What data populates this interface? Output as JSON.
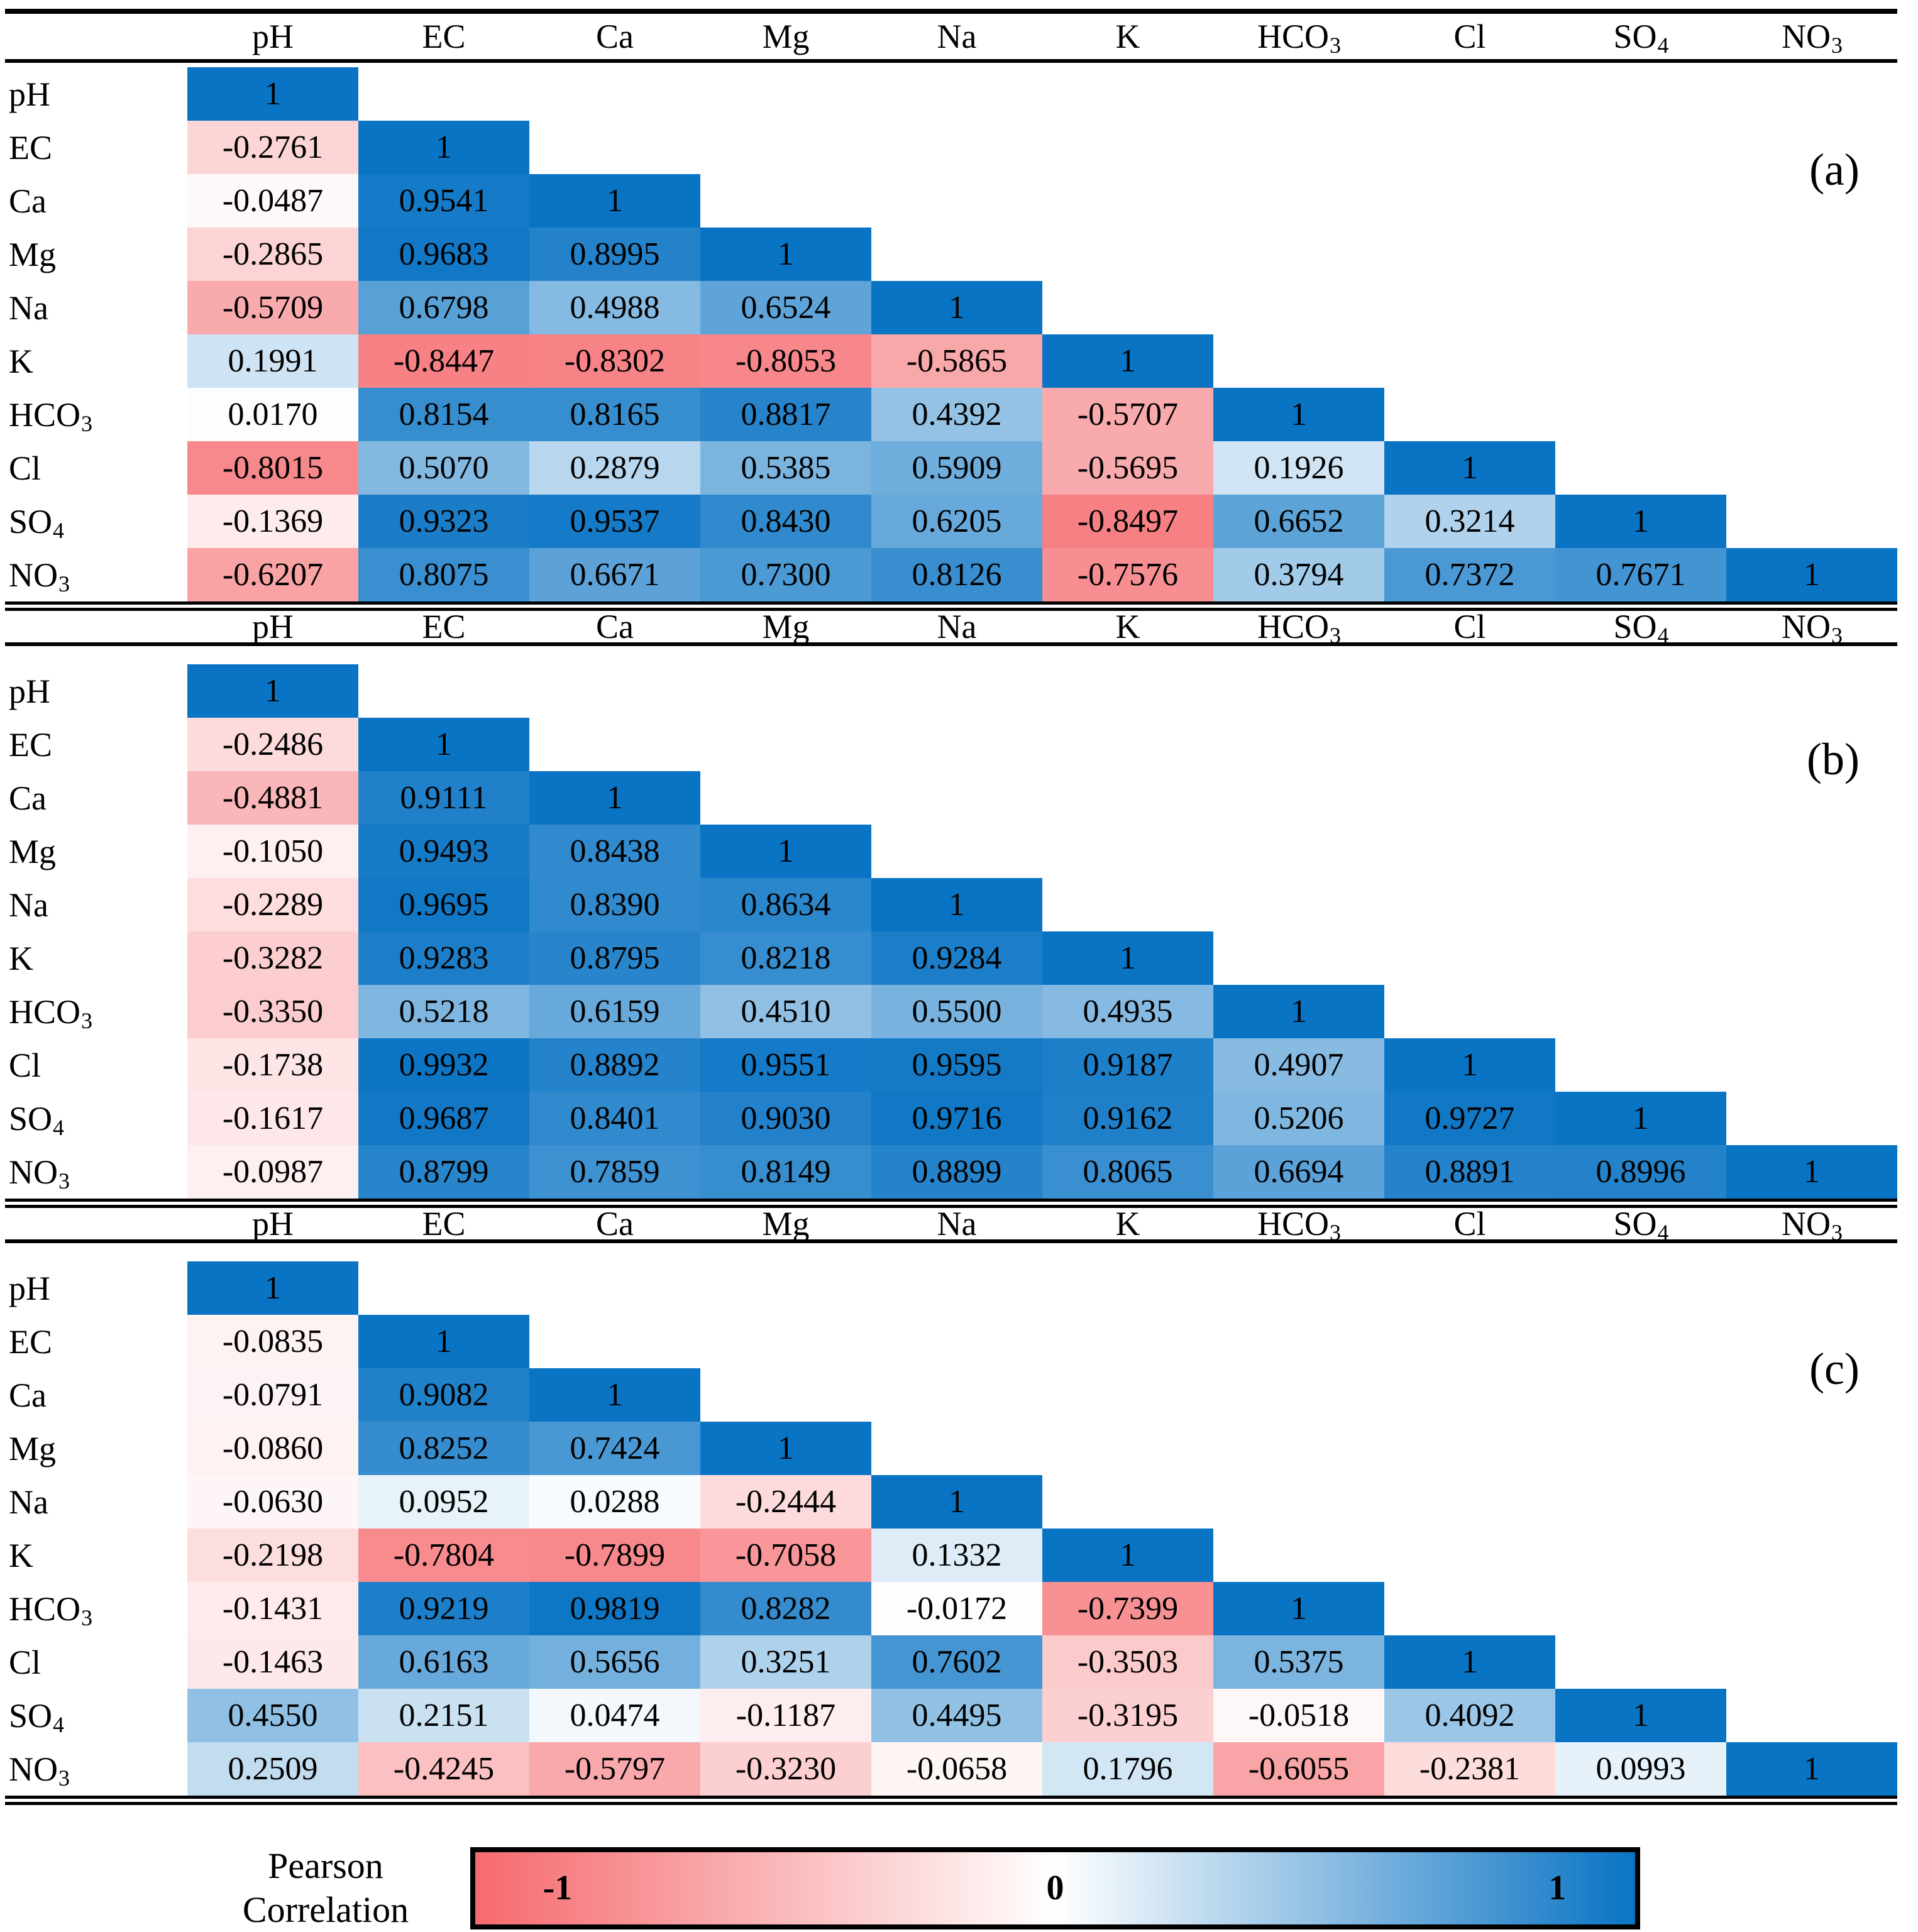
{
  "params": [
    {
      "base": "pH",
      "sub": ""
    },
    {
      "base": "EC",
      "sub": ""
    },
    {
      "base": "Ca",
      "sub": ""
    },
    {
      "base": "Mg",
      "sub": ""
    },
    {
      "base": "Na",
      "sub": ""
    },
    {
      "base": "K",
      "sub": ""
    },
    {
      "base": "HCO",
      "sub": "3"
    },
    {
      "base": "Cl",
      "sub": ""
    },
    {
      "base": "SO",
      "sub": "4"
    },
    {
      "base": "NO",
      "sub": "3"
    }
  ],
  "chart_data": [
    {
      "type": "heatmap",
      "panel_label": "(a)",
      "variables": [
        "pH",
        "EC",
        "Ca",
        "Mg",
        "Na",
        "K",
        "HCO3",
        "Cl",
        "SO4",
        "NO3"
      ],
      "matrix": [
        [
          "1"
        ],
        [
          "-0.2761",
          "1"
        ],
        [
          "-0.0487",
          "0.9541",
          "1"
        ],
        [
          "-0.2865",
          "0.9683",
          "0.8995",
          "1"
        ],
        [
          "-0.5709",
          "0.6798",
          "0.4988",
          "0.6524",
          "1"
        ],
        [
          "0.1991",
          "-0.8447",
          "-0.8302",
          "-0.8053",
          "-0.5865",
          "1"
        ],
        [
          "0.0170",
          "0.8154",
          "0.8165",
          "0.8817",
          "0.4392",
          "-0.5707",
          "1"
        ],
        [
          "-0.8015",
          "0.5070",
          "0.2879",
          "0.5385",
          "0.5909",
          "-0.5695",
          "0.1926",
          "1"
        ],
        [
          "-0.1369",
          "0.9323",
          "0.9537",
          "0.8430",
          "0.6205",
          "-0.8497",
          "0.6652",
          "0.3214",
          "1"
        ],
        [
          "-0.6207",
          "0.8075",
          "0.6671",
          "0.7300",
          "0.8126",
          "-0.7576",
          "0.3794",
          "0.7372",
          "0.7671",
          "1"
        ]
      ]
    },
    {
      "type": "heatmap",
      "panel_label": "(b)",
      "variables": [
        "pH",
        "EC",
        "Ca",
        "Mg",
        "Na",
        "K",
        "HCO3",
        "Cl",
        "SO4",
        "NO3"
      ],
      "matrix": [
        [
          "1"
        ],
        [
          "-0.2486",
          "1"
        ],
        [
          "-0.4881",
          "0.9111",
          "1"
        ],
        [
          "-0.1050",
          "0.9493",
          "0.8438",
          "1"
        ],
        [
          "-0.2289",
          "0.9695",
          "0.8390",
          "0.8634",
          "1"
        ],
        [
          "-0.3282",
          "0.9283",
          "0.8795",
          "0.8218",
          "0.9284",
          "1"
        ],
        [
          "-0.3350",
          "0.5218",
          "0.6159",
          "0.4510",
          "0.5500",
          "0.4935",
          "1"
        ],
        [
          "-0.1738",
          "0.9932",
          "0.8892",
          "0.9551",
          "0.9595",
          "0.9187",
          "0.4907",
          "1"
        ],
        [
          "-0.1617",
          "0.9687",
          "0.8401",
          "0.9030",
          "0.9716",
          "0.9162",
          "0.5206",
          "0.9727",
          "1"
        ],
        [
          "-0.0987",
          "0.8799",
          "0.7859",
          "0.8149",
          "0.8899",
          "0.8065",
          "0.6694",
          "0.8891",
          "0.8996",
          "1"
        ]
      ]
    },
    {
      "type": "heatmap",
      "panel_label": "(c)",
      "variables": [
        "pH",
        "EC",
        "Ca",
        "Mg",
        "Na",
        "K",
        "HCO3",
        "Cl",
        "SO4",
        "NO3"
      ],
      "matrix": [
        [
          "1"
        ],
        [
          "-0.0835",
          "1"
        ],
        [
          "-0.0791",
          "0.9082",
          "1"
        ],
        [
          "-0.0860",
          "0.8252",
          "0.7424",
          "1"
        ],
        [
          "-0.0630",
          "0.0952",
          "0.0288",
          "-0.2444",
          "1"
        ],
        [
          "-0.2198",
          "-0.7804",
          "-0.7899",
          "-0.7058",
          "0.1332",
          "1"
        ],
        [
          "-0.1431",
          "0.9219",
          "0.9819",
          "0.8282",
          "-0.0172",
          "-0.7399",
          "1"
        ],
        [
          "-0.1463",
          "0.6163",
          "0.5656",
          "0.3251",
          "0.7602",
          "-0.3503",
          "0.5375",
          "1"
        ],
        [
          "0.4550",
          "0.2151",
          "0.0474",
          "-0.1187",
          "0.4495",
          "-0.3195",
          "-0.0518",
          "0.4092",
          "1"
        ],
        [
          "0.2509",
          "-0.4245",
          "-0.5797",
          "-0.3230",
          "-0.0658",
          "0.1796",
          "-0.6055",
          "-0.2381",
          "0.0993",
          "1"
        ]
      ]
    }
  ],
  "colorbar": {
    "title_line1": "Pearson",
    "title_line2": "Correlation",
    "tick_min": "-1",
    "tick_zero": "0",
    "tick_max": "1",
    "range": [
      -1,
      1
    ],
    "color_negative": "#F56A6E",
    "color_zero": "#FFFFFF",
    "color_positive": "#0A74C4"
  }
}
